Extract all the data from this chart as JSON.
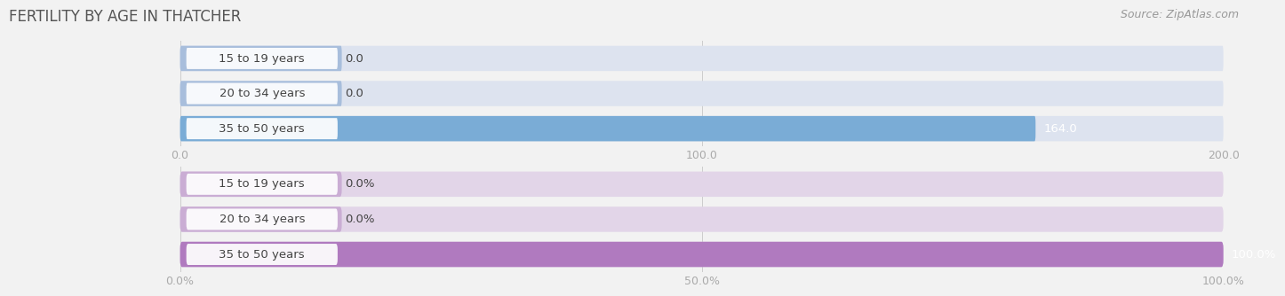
{
  "title": "FERTILITY BY AGE IN THATCHER",
  "source": "Source: ZipAtlas.com",
  "top_chart": {
    "categories": [
      "15 to 19 years",
      "20 to 34 years",
      "35 to 50 years"
    ],
    "values": [
      0.0,
      0.0,
      164.0
    ],
    "xlim": [
      0,
      200
    ],
    "xticks": [
      0.0,
      100.0,
      200.0
    ],
    "xtick_labels": [
      "0.0",
      "100.0",
      "200.0"
    ],
    "bar_color": "#7aacd6",
    "bar_bg_color": "#dde3ef",
    "zero_bar_color": "#a8bedc"
  },
  "bottom_chart": {
    "categories": [
      "15 to 19 years",
      "20 to 34 years",
      "35 to 50 years"
    ],
    "values": [
      0.0,
      0.0,
      100.0
    ],
    "xlim": [
      0,
      100
    ],
    "xticks": [
      0.0,
      50.0,
      100.0
    ],
    "xtick_labels": [
      "0.0%",
      "50.0%",
      "100.0%"
    ],
    "bar_color": "#b07abf",
    "bar_bg_color": "#e2d5e8",
    "zero_bar_color": "#caadd4"
  },
  "bg_color": "#f2f2f2",
  "title_color": "#555555",
  "tick_color": "#aaaaaa",
  "label_text_color": "#444444",
  "bar_height": 0.72,
  "bar_label_fontsize": 9.5,
  "category_fontsize": 9.5,
  "tick_fontsize": 9,
  "title_fontsize": 12
}
